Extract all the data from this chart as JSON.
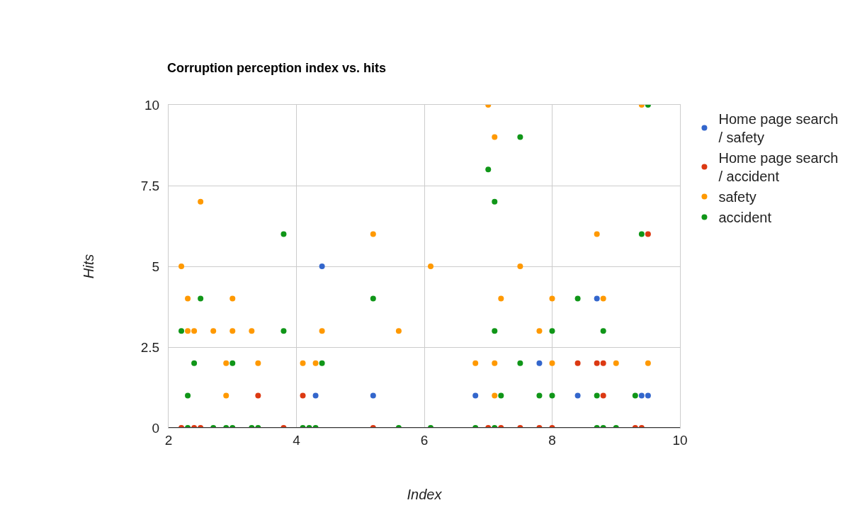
{
  "chart_data": {
    "type": "scatter",
    "title": "Corruption perception index vs. hits",
    "xlabel": "Index",
    "ylabel": "Hits",
    "xlim": [
      2,
      10
    ],
    "xticks": [
      2,
      4,
      6,
      8,
      10
    ],
    "ylim": [
      0,
      10
    ],
    "yticks": [
      0,
      2.5,
      5,
      7.5,
      10
    ],
    "grid": true,
    "legend": "top right",
    "marker": "circle",
    "series": [
      {
        "name": "Home page search / safety",
        "color": "#3366cc",
        "x": [
          4.4,
          8.7,
          7.8,
          4.3,
          5.2,
          6.8,
          8.4,
          9.4,
          9.5
        ],
        "values": [
          5,
          4,
          2,
          1,
          1,
          1,
          1,
          1,
          1
        ]
      },
      {
        "name": "Home page search / accident",
        "color": "#dc3912",
        "x": [
          9.5,
          8.4,
          8.7,
          8.8,
          3.4,
          4.1,
          8.8,
          2.2,
          2.4,
          2.5,
          3.8,
          5.2,
          7.0,
          7.2,
          7.5,
          7.8,
          8.0,
          9.3,
          9.4
        ],
        "values": [
          6,
          2,
          2,
          2,
          1,
          1,
          1,
          0,
          0,
          0,
          0,
          0,
          0,
          0,
          0,
          0,
          0,
          0,
          0
        ]
      },
      {
        "name": "safety",
        "color": "#ff9900",
        "x": [
          7.0,
          9.4,
          7.1,
          2.5,
          5.2,
          8.7,
          2.2,
          6.1,
          7.5,
          2.3,
          3.0,
          7.2,
          8.0,
          8.8,
          2.3,
          2.4,
          2.7,
          3.0,
          3.3,
          4.4,
          5.6,
          7.8,
          2.9,
          3.4,
          4.1,
          4.3,
          6.8,
          7.1,
          8.0,
          9.0,
          9.5,
          2.9,
          7.1
        ],
        "values": [
          10,
          10,
          9,
          7,
          6,
          6,
          5,
          5,
          5,
          4,
          4,
          4,
          4,
          4,
          3,
          3,
          3,
          3,
          3,
          3,
          3,
          3,
          2,
          2,
          2,
          2,
          2,
          2,
          2,
          2,
          2,
          1,
          1
        ]
      },
      {
        "name": "accident",
        "color": "#109618",
        "x": [
          9.5,
          7.5,
          7.0,
          7.1,
          3.8,
          9.4,
          2.5,
          5.2,
          8.4,
          2.2,
          3.8,
          7.1,
          8.0,
          8.8,
          2.4,
          3.0,
          4.4,
          7.5,
          2.3,
          7.2,
          7.8,
          8.0,
          8.7,
          9.3,
          2.3,
          2.7,
          2.9,
          3.0,
          3.3,
          3.4,
          4.1,
          4.2,
          4.3,
          5.6,
          6.1,
          6.8,
          7.1,
          8.7,
          8.8,
          9.0
        ],
        "values": [
          10,
          9,
          8,
          7,
          6,
          6,
          4,
          4,
          4,
          3,
          3,
          3,
          3,
          3,
          2,
          2,
          2,
          2,
          1,
          1,
          1,
          1,
          1,
          1,
          0,
          0,
          0,
          0,
          0,
          0,
          0,
          0,
          0,
          0,
          0,
          0,
          0,
          0,
          0,
          0
        ]
      }
    ]
  }
}
